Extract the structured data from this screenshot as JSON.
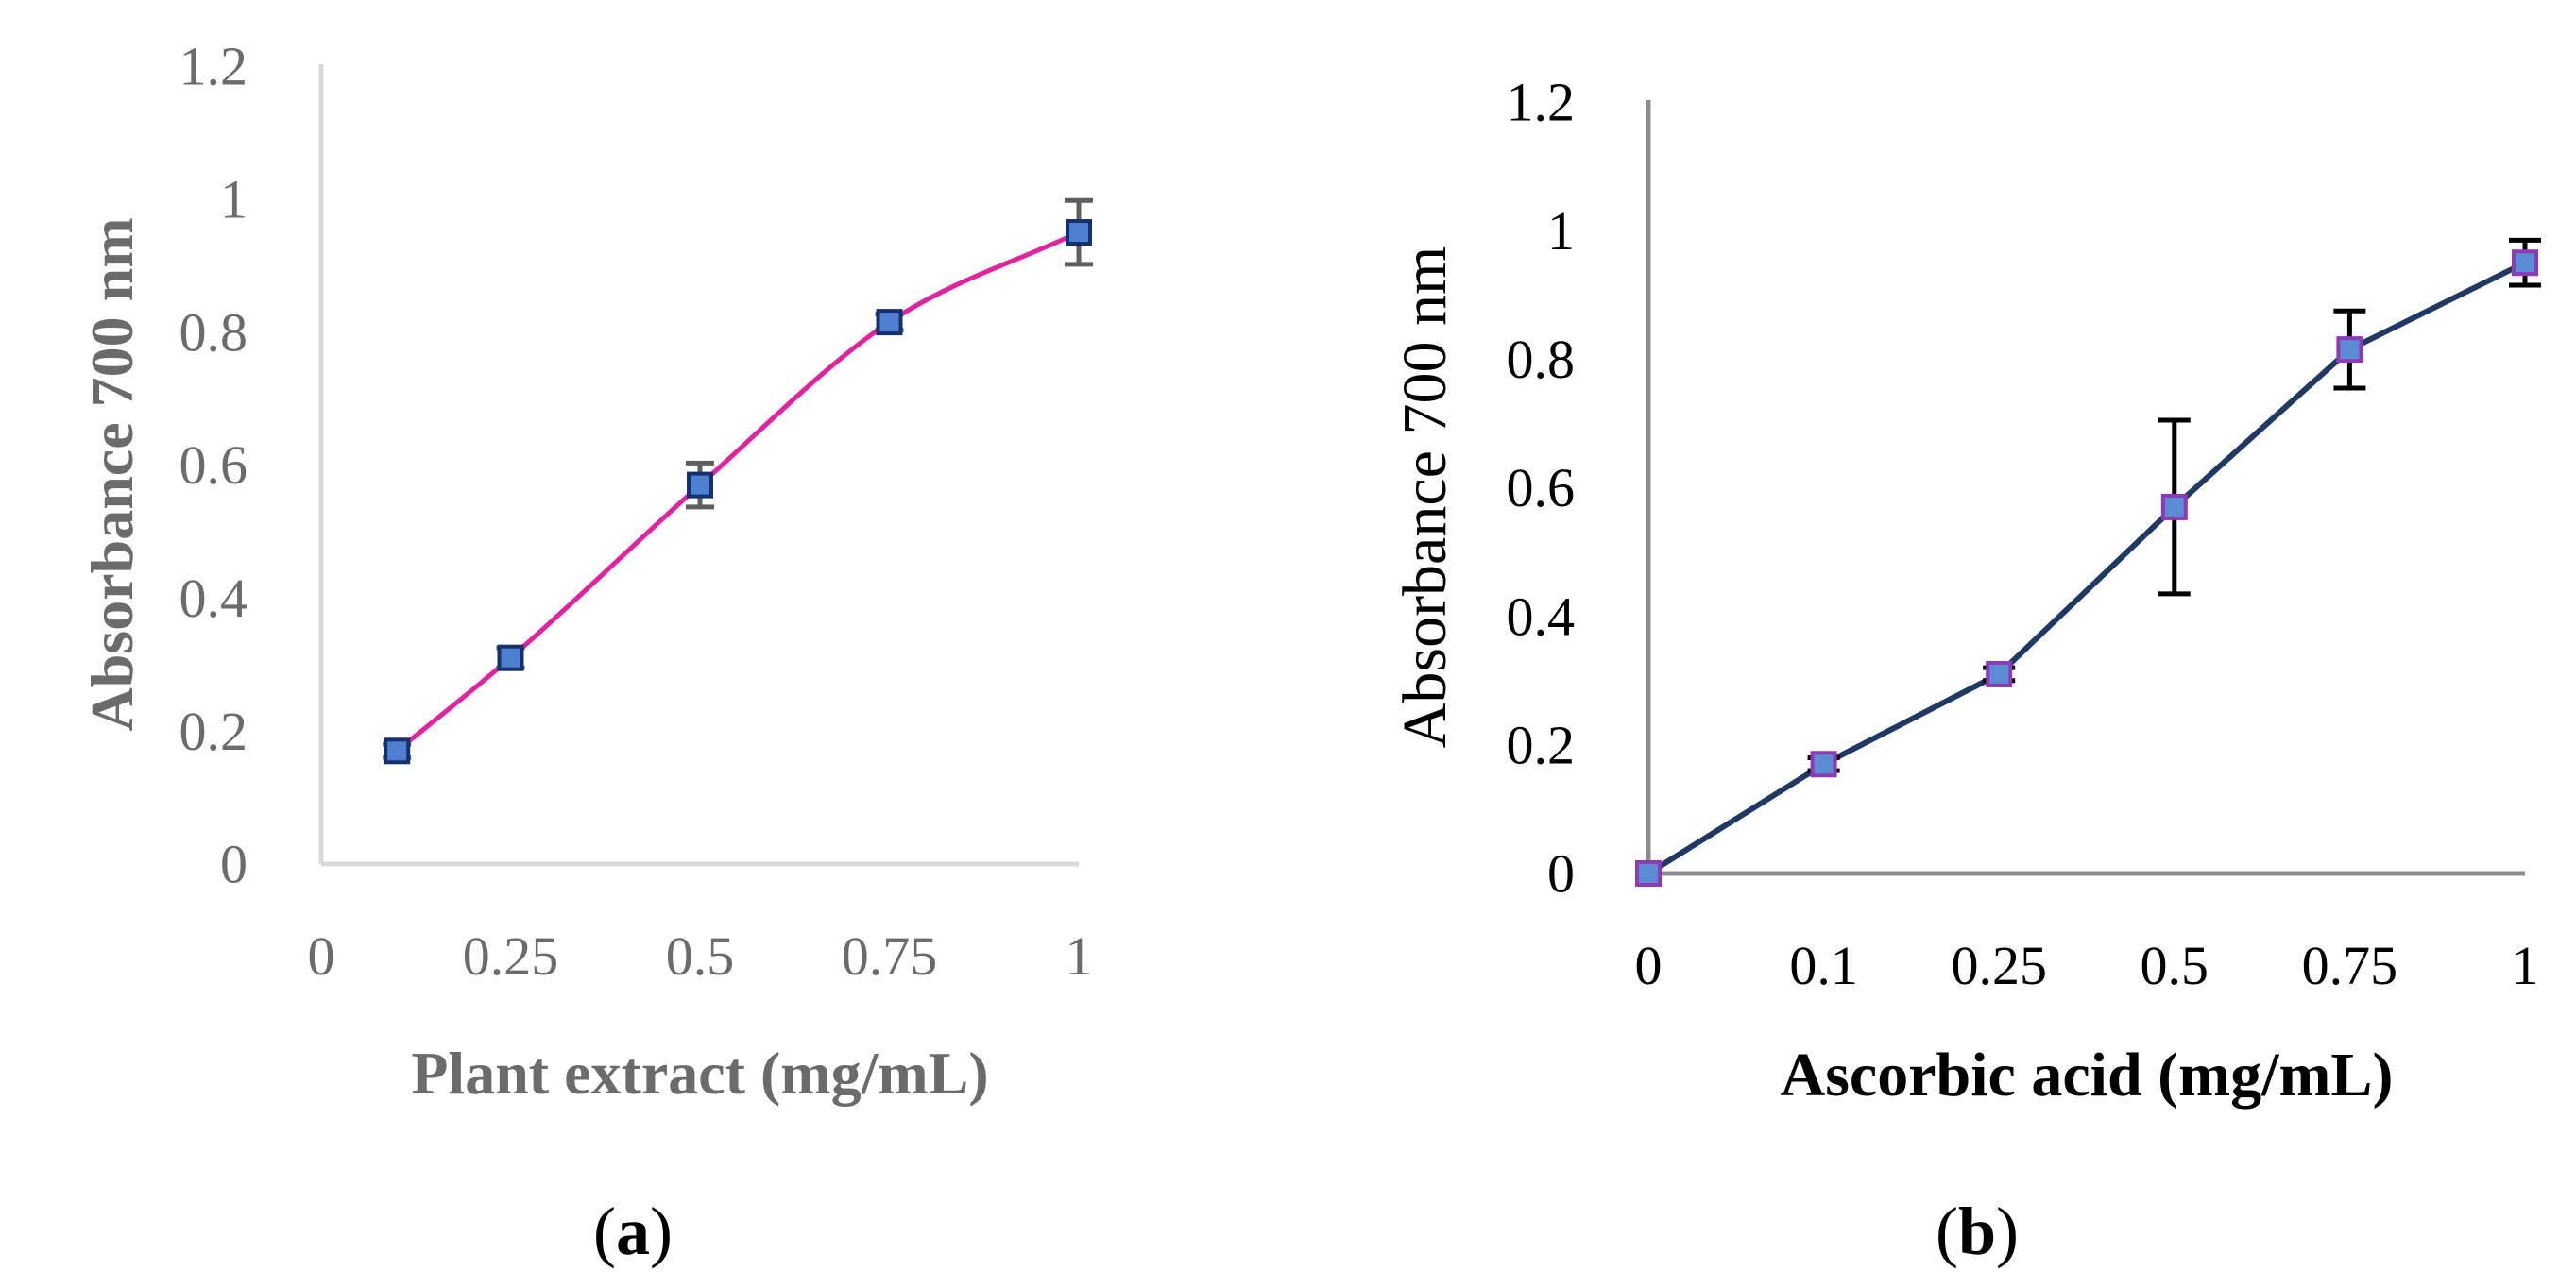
{
  "chart_data": [
    {
      "panel": "a",
      "type": "line",
      "smooth": true,
      "x": [
        0.1,
        0.25,
        0.5,
        0.75,
        1
      ],
      "series": [
        {
          "values": [
            0.17,
            0.31,
            0.57,
            0.815,
            0.95
          ],
          "errors": [
            0.01,
            0.015,
            0.033,
            0.012,
            0.048
          ]
        }
      ],
      "xticks": [
        "0",
        "0.25",
        "0.5",
        "0.75",
        "1"
      ],
      "yticks": [
        "0",
        "0.2",
        "0.4",
        "0.6",
        "0.8",
        "1",
        "1.2"
      ],
      "xlim": [
        0,
        1
      ],
      "ylim": [
        0,
        1.2
      ],
      "xlabel": "Plant extract (mg/mL)",
      "ylabel": "Absorbance 700 nm",
      "caption": "a",
      "grid": false,
      "colors": {
        "line": "#e2239f",
        "marker_fill": "#4f7fd0",
        "marker_edge": "#16306e",
        "error": "#5f5f5f",
        "axis": "#d9d9d9",
        "text": "#6b6b6b"
      }
    },
    {
      "panel": "b",
      "type": "line",
      "smooth": false,
      "categories": [
        "0",
        "0.1",
        "0.25",
        "0.5",
        "0.75",
        "1"
      ],
      "series": [
        {
          "values": [
            0,
            0.17,
            0.31,
            0.57,
            0.815,
            0.95
          ],
          "errors": [
            0,
            0.01,
            0.01,
            0.135,
            0.06,
            0.035
          ]
        }
      ],
      "yticks": [
        "0",
        "0.2",
        "0.4",
        "0.6",
        "0.8",
        "1",
        "1.2"
      ],
      "ylim": [
        0,
        1.2
      ],
      "xlabel": "Ascorbic acid (mg/mL)",
      "ylabel": "Absorbance 700 nm",
      "caption": "b",
      "grid": false,
      "colors": {
        "line": "#1f3864",
        "marker_fill": "#5b8bd3",
        "marker_edge": "#8e3ab5",
        "error": "#000000",
        "axis": "#8c8c8c",
        "text": "#000000"
      }
    }
  ]
}
